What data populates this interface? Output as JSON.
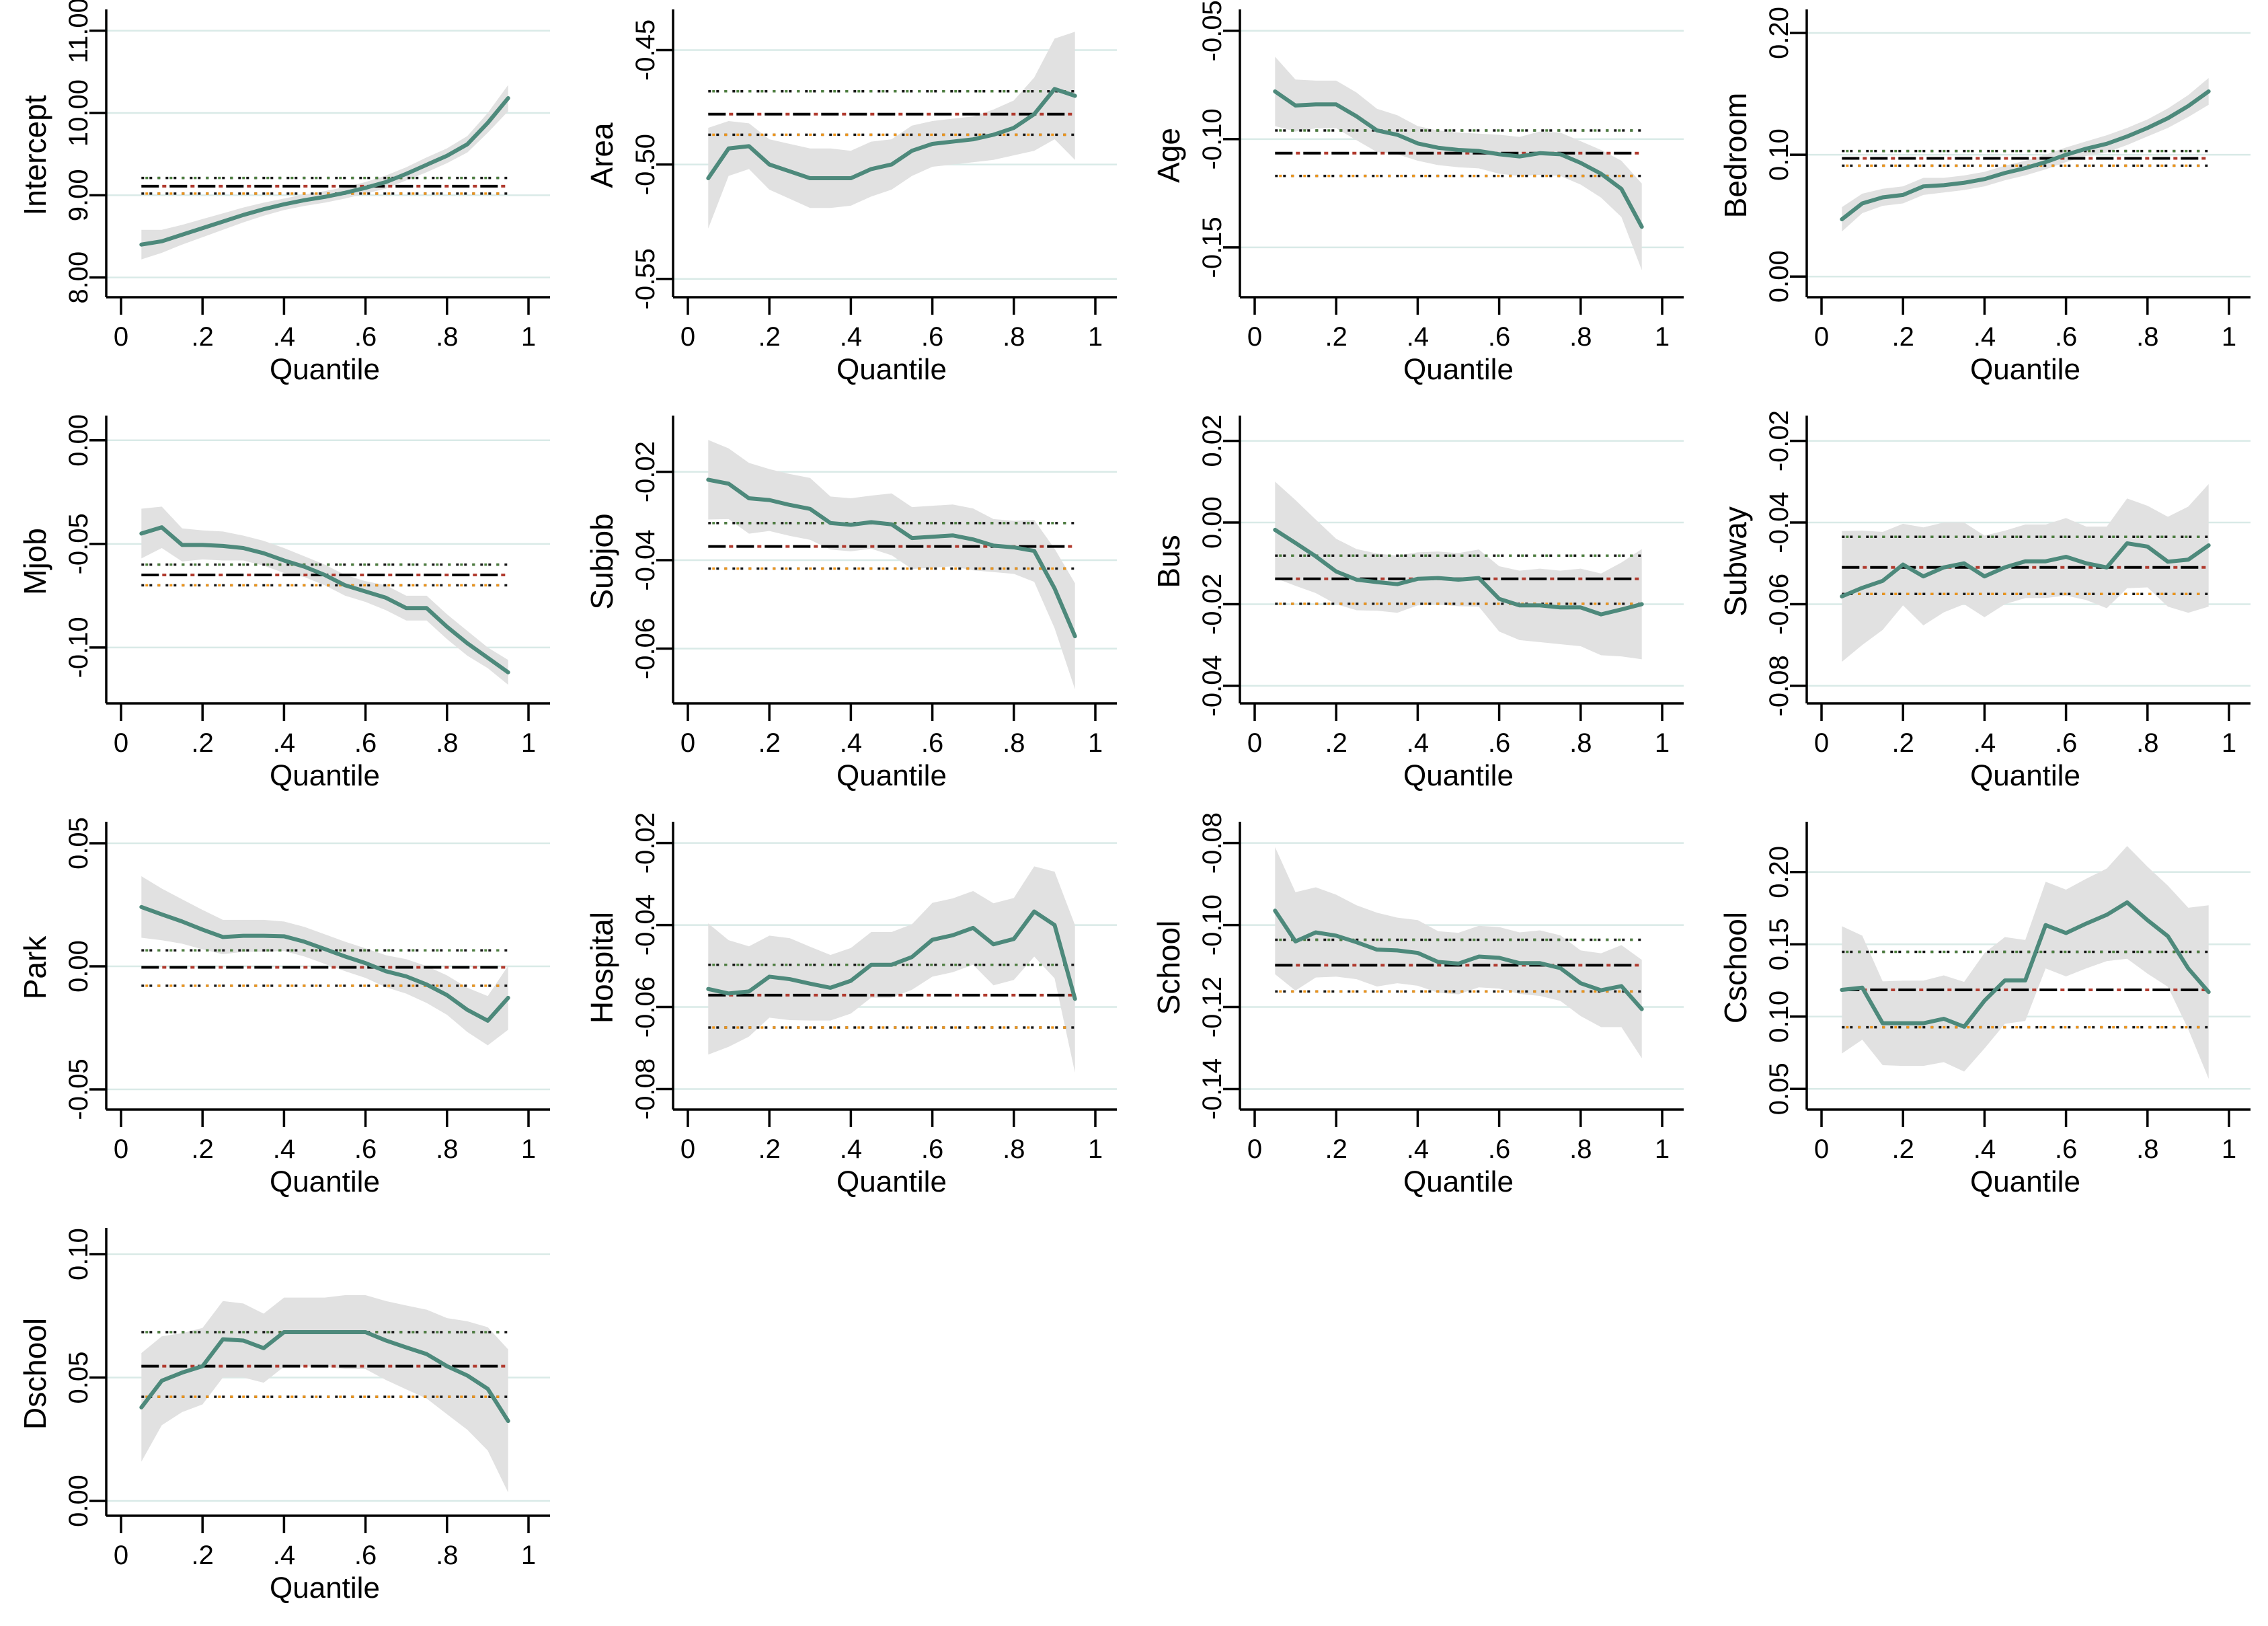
{
  "figure": {
    "xlabel": "Quantile",
    "x_tick_labels": [
      "0",
      ".2",
      ".4",
      ".6",
      ".8",
      "1"
    ],
    "x_tick_values": [
      0,
      0.2,
      0.4,
      0.6,
      0.8,
      1
    ],
    "quantiles": [
      0.05,
      0.1,
      0.15,
      0.2,
      0.25,
      0.3,
      0.35,
      0.4,
      0.45,
      0.5,
      0.55,
      0.6,
      0.65,
      0.7,
      0.75,
      0.8,
      0.85,
      0.9,
      0.95
    ]
  },
  "style": {
    "line_color": "#4d897b",
    "band_color": "#e1e1e1",
    "grid_color": "#d9eae7",
    "axis_color": "#000000",
    "ols_dash_color": "#000000",
    "ols_dash_accent": "#b03a2e",
    "ols_upper_dot_black": "#161616",
    "ols_upper_dot_green": "#4c7e3e",
    "ols_lower_dot_black": "#161616",
    "ols_lower_dot_orange": "#ee9418"
  },
  "chart_data": [
    {
      "type": "line",
      "title": "Intercept",
      "ylabel": "Intercept",
      "xlabel": "Quantile",
      "row": 0,
      "col": 0,
      "values": [
        8.4,
        8.44,
        8.52,
        8.6,
        8.68,
        8.76,
        8.83,
        8.89,
        8.94,
        8.98,
        9.03,
        9.09,
        9.16,
        9.26,
        9.37,
        9.48,
        9.62,
        9.88,
        10.18
      ],
      "ci_lower": [
        8.22,
        8.3,
        8.4,
        8.49,
        8.58,
        8.67,
        8.75,
        8.82,
        8.87,
        8.91,
        8.96,
        9.02,
        9.08,
        9.18,
        9.28,
        9.39,
        9.52,
        9.76,
        10.02
      ],
      "ci_upper": [
        8.58,
        8.58,
        8.64,
        8.71,
        8.78,
        8.85,
        8.91,
        8.96,
        9.01,
        9.05,
        9.1,
        9.16,
        9.24,
        9.34,
        9.46,
        9.57,
        9.72,
        10.0,
        10.34
      ],
      "ols": 9.11,
      "ols_upper": 9.21,
      "ols_lower": 9.02,
      "ylim": [
        7.76,
        11.21
      ],
      "yticks": [
        8,
        9,
        10,
        11
      ],
      "ytick_labels": [
        "8.00",
        "9.00",
        "10.00",
        "11.00"
      ]
    },
    {
      "type": "line",
      "title": "Area",
      "ylabel": "Area",
      "xlabel": "Quantile",
      "row": 0,
      "col": 1,
      "values": [
        -0.506,
        -0.493,
        -0.492,
        -0.5,
        -0.503,
        -0.506,
        -0.506,
        -0.506,
        -0.502,
        -0.5,
        -0.494,
        -0.491,
        -0.49,
        -0.489,
        -0.487,
        -0.484,
        -0.478,
        -0.467,
        -0.47
      ],
      "ci_lower": [
        -0.528,
        -0.505,
        -0.502,
        -0.511,
        -0.515,
        -0.519,
        -0.519,
        -0.518,
        -0.514,
        -0.511,
        -0.505,
        -0.501,
        -0.5,
        -0.499,
        -0.498,
        -0.496,
        -0.494,
        -0.489,
        -0.498
      ],
      "ci_upper": [
        -0.484,
        -0.481,
        -0.482,
        -0.489,
        -0.491,
        -0.493,
        -0.493,
        -0.494,
        -0.49,
        -0.489,
        -0.483,
        -0.481,
        -0.48,
        -0.479,
        -0.476,
        -0.472,
        -0.462,
        -0.445,
        -0.442
      ],
      "ols": -0.478,
      "ols_upper": -0.468,
      "ols_lower": -0.487,
      "ylim": [
        -0.558,
        -0.434
      ],
      "yticks": [
        -0.45,
        -0.5,
        -0.55
      ],
      "ytick_labels": [
        "-0.45",
        "-0.50",
        "-0.55"
      ]
    },
    {
      "type": "line",
      "title": "Age",
      "ylabel": "Age",
      "xlabel": "Quantile",
      "row": 0,
      "col": 2,
      "values": [
        -0.078,
        -0.0845,
        -0.084,
        -0.084,
        -0.0895,
        -0.096,
        -0.098,
        -0.102,
        -0.104,
        -0.105,
        -0.1055,
        -0.107,
        -0.108,
        -0.1065,
        -0.107,
        -0.111,
        -0.116,
        -0.123,
        -0.1405
      ],
      "ci_lower": [
        -0.094,
        -0.0965,
        -0.095,
        -0.095,
        -0.1005,
        -0.106,
        -0.107,
        -0.11,
        -0.112,
        -0.113,
        -0.1135,
        -0.116,
        -0.117,
        -0.1165,
        -0.117,
        -0.121,
        -0.127,
        -0.136,
        -0.1605
      ],
      "ci_upper": [
        -0.062,
        -0.0725,
        -0.073,
        -0.073,
        -0.0785,
        -0.086,
        -0.089,
        -0.094,
        -0.096,
        -0.097,
        -0.0975,
        -0.098,
        -0.099,
        -0.0965,
        -0.097,
        -0.101,
        -0.105,
        -0.11,
        -0.1205
      ],
      "ols": -0.1065,
      "ols_upper": -0.096,
      "ols_lower": -0.117,
      "ylim": [
        -0.173,
        -0.042
      ],
      "yticks": [
        -0.05,
        -0.1,
        -0.15
      ],
      "ytick_labels": [
        "-0.05",
        "-0.10",
        "-0.15"
      ]
    },
    {
      "type": "line",
      "title": "Bedroom",
      "ylabel": "Bedroom",
      "xlabel": "Quantile",
      "row": 0,
      "col": 3,
      "values": [
        0.047,
        0.06,
        0.065,
        0.067,
        0.074,
        0.075,
        0.077,
        0.08,
        0.085,
        0.089,
        0.094,
        0.1,
        0.105,
        0.109,
        0.115,
        0.122,
        0.13,
        0.14,
        0.152
      ],
      "ci_lower": [
        0.037,
        0.052,
        0.058,
        0.06,
        0.067,
        0.069,
        0.071,
        0.074,
        0.079,
        0.083,
        0.088,
        0.094,
        0.099,
        0.102,
        0.108,
        0.115,
        0.122,
        0.131,
        0.141
      ],
      "ci_upper": [
        0.057,
        0.068,
        0.072,
        0.074,
        0.081,
        0.081,
        0.083,
        0.086,
        0.091,
        0.095,
        0.1,
        0.106,
        0.111,
        0.116,
        0.122,
        0.129,
        0.138,
        0.149,
        0.163
      ],
      "ols": 0.097,
      "ols_upper": 0.103,
      "ols_lower": 0.091,
      "ylim": [
        -0.017,
        0.216
      ],
      "yticks": [
        0.0,
        0.1,
        0.2
      ],
      "ytick_labels": [
        "0.00",
        "0.10",
        "0.20"
      ]
    },
    {
      "type": "line",
      "title": "Mjob",
      "ylabel": "Mjob",
      "xlabel": "Quantile",
      "row": 1,
      "col": 0,
      "values": [
        -0.045,
        -0.042,
        -0.0505,
        -0.0505,
        -0.051,
        -0.052,
        -0.0545,
        -0.058,
        -0.061,
        -0.065,
        -0.07,
        -0.073,
        -0.076,
        -0.081,
        -0.081,
        -0.09,
        -0.098,
        -0.105,
        -0.112
      ],
      "ci_lower": [
        -0.057,
        -0.052,
        -0.0585,
        -0.0575,
        -0.058,
        -0.058,
        -0.0605,
        -0.064,
        -0.066,
        -0.07,
        -0.075,
        -0.078,
        -0.082,
        -0.087,
        -0.087,
        -0.096,
        -0.104,
        -0.11,
        -0.118
      ],
      "ci_upper": [
        -0.033,
        -0.032,
        -0.0425,
        -0.0435,
        -0.044,
        -0.046,
        -0.0485,
        -0.052,
        -0.056,
        -0.06,
        -0.065,
        -0.068,
        -0.07,
        -0.075,
        -0.075,
        -0.084,
        -0.092,
        -0.1,
        -0.106
      ],
      "ols": -0.065,
      "ols_upper": -0.06,
      "ols_lower": -0.07,
      "ylim": [
        -0.127,
        0.01
      ],
      "yticks": [
        0.0,
        -0.05,
        -0.1
      ],
      "ytick_labels": [
        "0.00",
        "-0.05",
        "-0.10"
      ]
    },
    {
      "type": "line",
      "title": "Subjob",
      "ylabel": "Subjob",
      "xlabel": "Quantile",
      "row": 1,
      "col": 1,
      "values": [
        -0.0218,
        -0.0227,
        -0.026,
        -0.0264,
        -0.0275,
        -0.0284,
        -0.0316,
        -0.032,
        -0.0314,
        -0.0319,
        -0.035,
        -0.0347,
        -0.0344,
        -0.0353,
        -0.0367,
        -0.0371,
        -0.0379,
        -0.0464,
        -0.0572
      ],
      "ci_lower": [
        -0.0308,
        -0.0307,
        -0.034,
        -0.0334,
        -0.0345,
        -0.0354,
        -0.0376,
        -0.038,
        -0.0374,
        -0.0389,
        -0.042,
        -0.0417,
        -0.0414,
        -0.0423,
        -0.0427,
        -0.0431,
        -0.0449,
        -0.0554,
        -0.0692
      ],
      "ci_upper": [
        -0.0128,
        -0.0147,
        -0.018,
        -0.0194,
        -0.0205,
        -0.0214,
        -0.0256,
        -0.026,
        -0.0254,
        -0.0249,
        -0.028,
        -0.0277,
        -0.0274,
        -0.0283,
        -0.0307,
        -0.0311,
        -0.0309,
        -0.0374,
        -0.0452
      ],
      "ols": -0.0369,
      "ols_upper": -0.0316,
      "ols_lower": -0.0419,
      "ylim": [
        -0.0724,
        -0.0082
      ],
      "yticks": [
        -0.02,
        -0.04,
        -0.06
      ],
      "ytick_labels": [
        "-0.02",
        "-0.04",
        "-0.06"
      ]
    },
    {
      "type": "line",
      "title": "Bus",
      "ylabel": "Bus",
      "xlabel": "Quantile",
      "row": 1,
      "col": 2,
      "values": [
        -0.0018,
        -0.005,
        -0.0083,
        -0.012,
        -0.014,
        -0.0146,
        -0.0151,
        -0.0138,
        -0.0136,
        -0.014,
        -0.0136,
        -0.0187,
        -0.0203,
        -0.0203,
        -0.0208,
        -0.0208,
        -0.0225,
        -0.0213,
        -0.02
      ],
      "ci_lower": [
        -0.0136,
        -0.0155,
        -0.0173,
        -0.02,
        -0.0215,
        -0.0216,
        -0.0221,
        -0.0203,
        -0.0201,
        -0.0205,
        -0.0206,
        -0.0267,
        -0.0288,
        -0.0293,
        -0.0298,
        -0.0303,
        -0.0325,
        -0.0328,
        -0.0335
      ],
      "ci_upper": [
        0.01,
        0.0055,
        0.0007,
        -0.004,
        -0.0065,
        -0.0076,
        -0.0081,
        -0.0073,
        -0.0071,
        -0.0075,
        -0.0066,
        -0.0107,
        -0.0118,
        -0.0113,
        -0.0118,
        -0.0113,
        -0.0125,
        -0.0098,
        -0.0065
      ],
      "ols": -0.0138,
      "ols_upper": -0.0081,
      "ols_lower": -0.0199,
      "ylim": [
        -0.0443,
        0.0252
      ],
      "yticks": [
        0.02,
        0.0,
        -0.02,
        -0.04
      ],
      "ytick_labels": [
        "0.02",
        "0.00",
        "-0.02",
        "-0.04"
      ]
    },
    {
      "type": "line",
      "title": "Subway",
      "ylabel": "Subway",
      "xlabel": "Quantile",
      "row": 1,
      "col": 3,
      "values": [
        -0.0581,
        -0.056,
        -0.0543,
        -0.0503,
        -0.0532,
        -0.051,
        -0.05,
        -0.0532,
        -0.051,
        -0.0495,
        -0.0495,
        -0.0484,
        -0.05,
        -0.051,
        -0.0451,
        -0.0459,
        -0.0496,
        -0.0491,
        -0.0456
      ],
      "ci_lower": [
        -0.0741,
        -0.07,
        -0.0663,
        -0.0603,
        -0.0652,
        -0.062,
        -0.06,
        -0.0632,
        -0.06,
        -0.0585,
        -0.0585,
        -0.0579,
        -0.059,
        -0.061,
        -0.0561,
        -0.0559,
        -0.0606,
        -0.0621,
        -0.0606
      ],
      "ci_upper": [
        -0.0421,
        -0.042,
        -0.0423,
        -0.0403,
        -0.0412,
        -0.04,
        -0.04,
        -0.0432,
        -0.042,
        -0.0405,
        -0.0405,
        -0.0389,
        -0.041,
        -0.041,
        -0.0341,
        -0.0359,
        -0.0386,
        -0.0361,
        -0.0306
      ],
      "ols": -0.051,
      "ols_upper": -0.0435,
      "ols_lower": -0.0575,
      "ylim": [
        -0.0843,
        -0.0148
      ],
      "yticks": [
        -0.02,
        -0.04,
        -0.06,
        -0.08
      ],
      "ytick_labels": [
        "-0.02",
        "-0.04",
        "-0.06",
        "-0.08"
      ]
    },
    {
      "type": "line",
      "title": "Park",
      "ylabel": "Park",
      "xlabel": "Quantile",
      "row": 2,
      "col": 0,
      "values": [
        0.0241,
        0.0211,
        0.0182,
        0.0149,
        0.0119,
        0.0124,
        0.0124,
        0.0122,
        0.01,
        0.007,
        0.004,
        0.0013,
        -0.002,
        -0.0041,
        -0.0074,
        -0.0117,
        -0.0177,
        -0.0221,
        -0.0128
      ],
      "ci_lower": [
        0.0116,
        0.0106,
        0.0092,
        0.0069,
        0.0049,
        0.0059,
        0.0059,
        0.0062,
        0.004,
        0.001,
        -0.002,
        -0.0047,
        -0.0085,
        -0.0111,
        -0.0149,
        -0.0197,
        -0.0267,
        -0.0321,
        -0.0258
      ],
      "ci_upper": [
        0.0366,
        0.0316,
        0.0272,
        0.0229,
        0.0189,
        0.0189,
        0.0189,
        0.0182,
        0.016,
        0.013,
        0.01,
        0.0073,
        0.0045,
        0.0029,
        0.0001,
        -0.0037,
        -0.0087,
        -0.0121,
        0.0002
      ],
      "ols": -0.0004,
      "ols_upper": 0.0065,
      "ols_lower": -0.0079,
      "ylim": [
        -0.0582,
        0.0571
      ],
      "yticks": [
        0.05,
        0.0,
        -0.05
      ],
      "ytick_labels": [
        "0.05",
        "0.00",
        "-0.05"
      ]
    },
    {
      "type": "line",
      "title": "Hospital",
      "ylabel": "Hospital",
      "xlabel": "Quantile",
      "row": 2,
      "col": 1,
      "values": [
        -0.0556,
        -0.0567,
        -0.0562,
        -0.0526,
        -0.0532,
        -0.0543,
        -0.0553,
        -0.0536,
        -0.0497,
        -0.0497,
        -0.0478,
        -0.0436,
        -0.0425,
        -0.0407,
        -0.0447,
        -0.0434,
        -0.0367,
        -0.04,
        -0.058
      ],
      "ci_lower": [
        -0.0716,
        -0.0697,
        -0.0672,
        -0.0626,
        -0.0632,
        -0.0633,
        -0.0633,
        -0.0616,
        -0.0577,
        -0.0577,
        -0.0558,
        -0.0526,
        -0.0515,
        -0.0497,
        -0.0547,
        -0.0534,
        -0.0477,
        -0.053,
        -0.076
      ],
      "ci_upper": [
        -0.0396,
        -0.0437,
        -0.0452,
        -0.0426,
        -0.0432,
        -0.0453,
        -0.0473,
        -0.0456,
        -0.0417,
        -0.0417,
        -0.0398,
        -0.0346,
        -0.0335,
        -0.0317,
        -0.0347,
        -0.0334,
        -0.0257,
        -0.027,
        -0.04
      ],
      "ols": -0.0571,
      "ols_upper": -0.0497,
      "ols_lower": -0.065,
      "ylim": [
        -0.085,
        -0.0158
      ],
      "yticks": [
        -0.02,
        -0.04,
        -0.06,
        -0.08
      ],
      "ytick_labels": [
        "-0.02",
        "-0.04",
        "-0.06",
        "-0.08"
      ]
    },
    {
      "type": "line",
      "title": "School",
      "ylabel": "School",
      "xlabel": "Quantile",
      "row": 2,
      "col": 2,
      "values": [
        -0.0965,
        -0.104,
        -0.1018,
        -0.1026,
        -0.1042,
        -0.106,
        -0.1062,
        -0.1068,
        -0.109,
        -0.1094,
        -0.1077,
        -0.108,
        -0.1093,
        -0.1093,
        -0.1105,
        -0.1142,
        -0.1159,
        -0.1149,
        -0.1205
      ],
      "ci_lower": [
        -0.112,
        -0.116,
        -0.1128,
        -0.1126,
        -0.1132,
        -0.115,
        -0.1142,
        -0.1148,
        -0.1165,
        -0.1169,
        -0.1152,
        -0.1155,
        -0.1168,
        -0.1173,
        -0.1185,
        -0.1222,
        -0.1249,
        -0.1249,
        -0.1325
      ],
      "ci_upper": [
        -0.081,
        -0.092,
        -0.0908,
        -0.0926,
        -0.0952,
        -0.097,
        -0.0982,
        -0.0988,
        -0.1015,
        -0.1019,
        -0.1002,
        -0.1005,
        -0.1018,
        -0.1013,
        -0.1025,
        -0.1062,
        -0.1069,
        -0.1049,
        -0.1085
      ],
      "ols": -0.1098,
      "ols_upper": -0.1036,
      "ols_lower": -0.1162,
      "ylim": [
        -0.145,
        -0.0758
      ],
      "yticks": [
        -0.08,
        -0.1,
        -0.12,
        -0.14
      ],
      "ytick_labels": [
        "-0.08",
        "-0.10",
        "-0.12",
        "-0.14"
      ]
    },
    {
      "type": "line",
      "title": "Cschool",
      "ylabel": "Cschool",
      "xlabel": "Quantile",
      "row": 2,
      "col": 3,
      "values": [
        0.1185,
        0.12,
        0.0954,
        0.0954,
        0.0954,
        0.0985,
        0.093,
        0.111,
        0.125,
        0.125,
        0.1633,
        0.1578,
        0.1644,
        0.1704,
        0.179,
        0.1667,
        0.1556,
        0.1333,
        0.117
      ],
      "ci_lower": [
        0.0745,
        0.084,
        0.0664,
        0.0659,
        0.0659,
        0.0685,
        0.062,
        0.078,
        0.095,
        0.097,
        0.1333,
        0.1278,
        0.1334,
        0.1384,
        0.14,
        0.1297,
        0.1206,
        0.0913,
        0.057
      ],
      "ci_upper": [
        0.1625,
        0.156,
        0.1244,
        0.1249,
        0.1249,
        0.1285,
        0.124,
        0.144,
        0.155,
        0.153,
        0.1933,
        0.1878,
        0.1954,
        0.2024,
        0.218,
        0.2037,
        0.1906,
        0.1753,
        0.177
      ],
      "ols": 0.1185,
      "ols_upper": 0.1448,
      "ols_lower": 0.0926,
      "ylim": [
        0.0357,
        0.232
      ],
      "yticks": [
        0.2,
        0.15,
        0.1,
        0.05
      ],
      "ytick_labels": [
        "0.20",
        "0.15",
        "0.10",
        "0.05"
      ]
    },
    {
      "type": "line",
      "title": "Dschool",
      "ylabel": "Dschool",
      "xlabel": "Quantile",
      "row": 3,
      "col": 0,
      "values": [
        0.0379,
        0.0487,
        0.052,
        0.0546,
        0.0655,
        0.065,
        0.0619,
        0.0684,
        0.0684,
        0.0684,
        0.0684,
        0.0684,
        0.065,
        0.0622,
        0.0595,
        0.0546,
        0.0508,
        0.0454,
        0.0324
      ],
      "ci_lower": [
        0.0159,
        0.0307,
        0.036,
        0.0391,
        0.05,
        0.05,
        0.0479,
        0.0544,
        0.0544,
        0.0544,
        0.0534,
        0.0534,
        0.049,
        0.0452,
        0.0415,
        0.0351,
        0.0288,
        0.0204,
        0.0034
      ],
      "ci_upper": [
        0.0599,
        0.0667,
        0.068,
        0.0701,
        0.081,
        0.08,
        0.0759,
        0.0824,
        0.0824,
        0.0824,
        0.0834,
        0.0834,
        0.081,
        0.0792,
        0.0775,
        0.0741,
        0.0728,
        0.0704,
        0.0614
      ],
      "ols": 0.0546,
      "ols_upper": 0.0684,
      "ols_lower": 0.0422,
      "ylim": [
        -0.006,
        0.109
      ],
      "yticks": [
        0.1,
        0.05,
        0.0
      ],
      "ytick_labels": [
        "0.10",
        "0.05",
        "0.00"
      ]
    }
  ]
}
